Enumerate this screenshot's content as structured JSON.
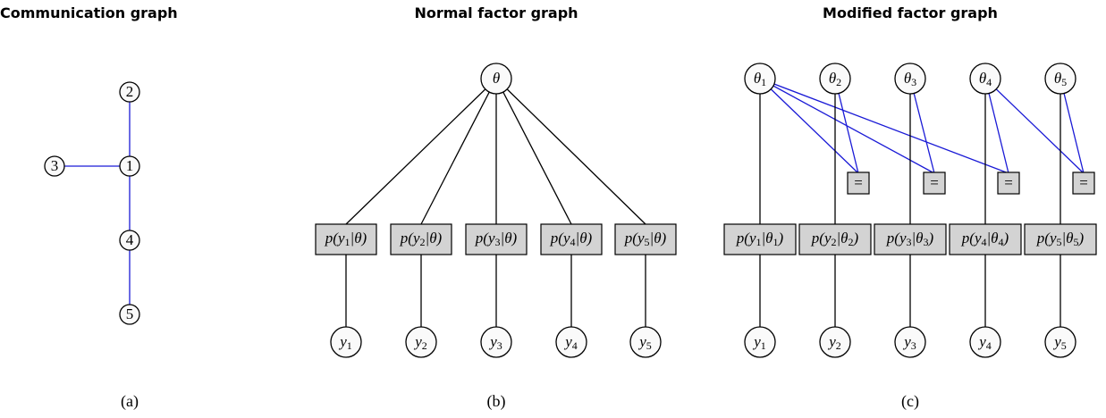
{
  "panels": [
    {
      "title": "Communication graph",
      "caption": "(a)",
      "nodes": [
        {
          "label": "1"
        },
        {
          "label": "2"
        },
        {
          "label": "3"
        },
        {
          "label": "4"
        },
        {
          "label": "5"
        }
      ]
    },
    {
      "title": "Normal factor graph",
      "caption": "(b)",
      "parameter": {
        "label": "θ"
      },
      "factors": [
        {
          "parts": [
            "p(y",
            "1",
            "|θ)"
          ]
        },
        {
          "parts": [
            "p(y",
            "2",
            "|θ)"
          ]
        },
        {
          "parts": [
            "p(y",
            "3",
            "|θ)"
          ]
        },
        {
          "parts": [
            "p(y",
            "4",
            "|θ)"
          ]
        },
        {
          "parts": [
            "p(y",
            "5",
            "|θ)"
          ]
        }
      ],
      "observations": [
        {
          "label": "y",
          "sub": "1"
        },
        {
          "label": "y",
          "sub": "2"
        },
        {
          "label": "y",
          "sub": "3"
        },
        {
          "label": "y",
          "sub": "4"
        },
        {
          "label": "y",
          "sub": "5"
        }
      ]
    },
    {
      "title": "Modified factor graph",
      "caption": "(c)",
      "parameters": [
        {
          "label": "θ",
          "sub": "1"
        },
        {
          "label": "θ",
          "sub": "2"
        },
        {
          "label": "θ",
          "sub": "3"
        },
        {
          "label": "θ",
          "sub": "4"
        },
        {
          "label": "θ",
          "sub": "5"
        }
      ],
      "equality_factors": [
        {
          "label": "="
        },
        {
          "label": "="
        },
        {
          "label": "="
        },
        {
          "label": "="
        }
      ],
      "factors": [
        {
          "parts": [
            "p(y",
            "1",
            "|θ",
            "1",
            ")"
          ]
        },
        {
          "parts": [
            "p(y",
            "2",
            "|θ",
            "2",
            ")"
          ]
        },
        {
          "parts": [
            "p(y",
            "3",
            "|θ",
            "3",
            ")"
          ]
        },
        {
          "parts": [
            "p(y",
            "4",
            "|θ",
            "4",
            ")"
          ]
        },
        {
          "parts": [
            "p(y",
            "5",
            "|θ",
            "5",
            ")"
          ]
        }
      ],
      "observations": [
        {
          "label": "y",
          "sub": "1"
        },
        {
          "label": "y",
          "sub": "2"
        },
        {
          "label": "y",
          "sub": "3"
        },
        {
          "label": "y",
          "sub": "4"
        },
        {
          "label": "y",
          "sub": "5"
        }
      ]
    }
  ]
}
